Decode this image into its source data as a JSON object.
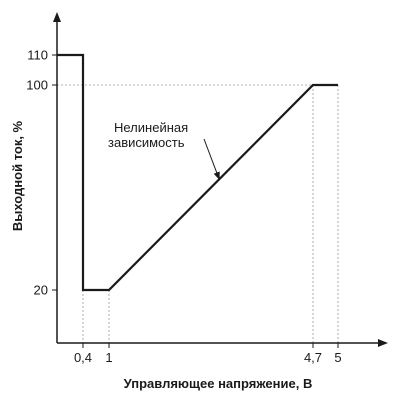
{
  "chart_data": {
    "type": "line",
    "title": "",
    "xlabel": "Управляющее напряжение, В",
    "ylabel": "Выходной ток, %",
    "x_ticks": [
      {
        "value": 0.4,
        "label": "0,4"
      },
      {
        "value": 1,
        "label": "1"
      },
      {
        "value": 4.7,
        "label": "4,7"
      },
      {
        "value": 5,
        "label": "5"
      }
    ],
    "y_ticks": [
      {
        "value": 20,
        "label": "20"
      },
      {
        "value": 100,
        "label": "100"
      },
      {
        "value": 110,
        "label": "110"
      }
    ],
    "series": [
      {
        "points": [
          {
            "x": 0,
            "y": 110
          },
          {
            "x": 0.4,
            "y": 110
          },
          {
            "x": 0.4,
            "y": 20
          },
          {
            "x": 1,
            "y": 20
          },
          {
            "x": 4.7,
            "y": 100
          },
          {
            "x": 5,
            "y": 100
          }
        ]
      }
    ],
    "annotations": [
      {
        "line1": "Нелинейная",
        "line2": "зависимость",
        "x": 3,
        "y": 63.2
      }
    ],
    "grid": false,
    "legend": "none"
  }
}
